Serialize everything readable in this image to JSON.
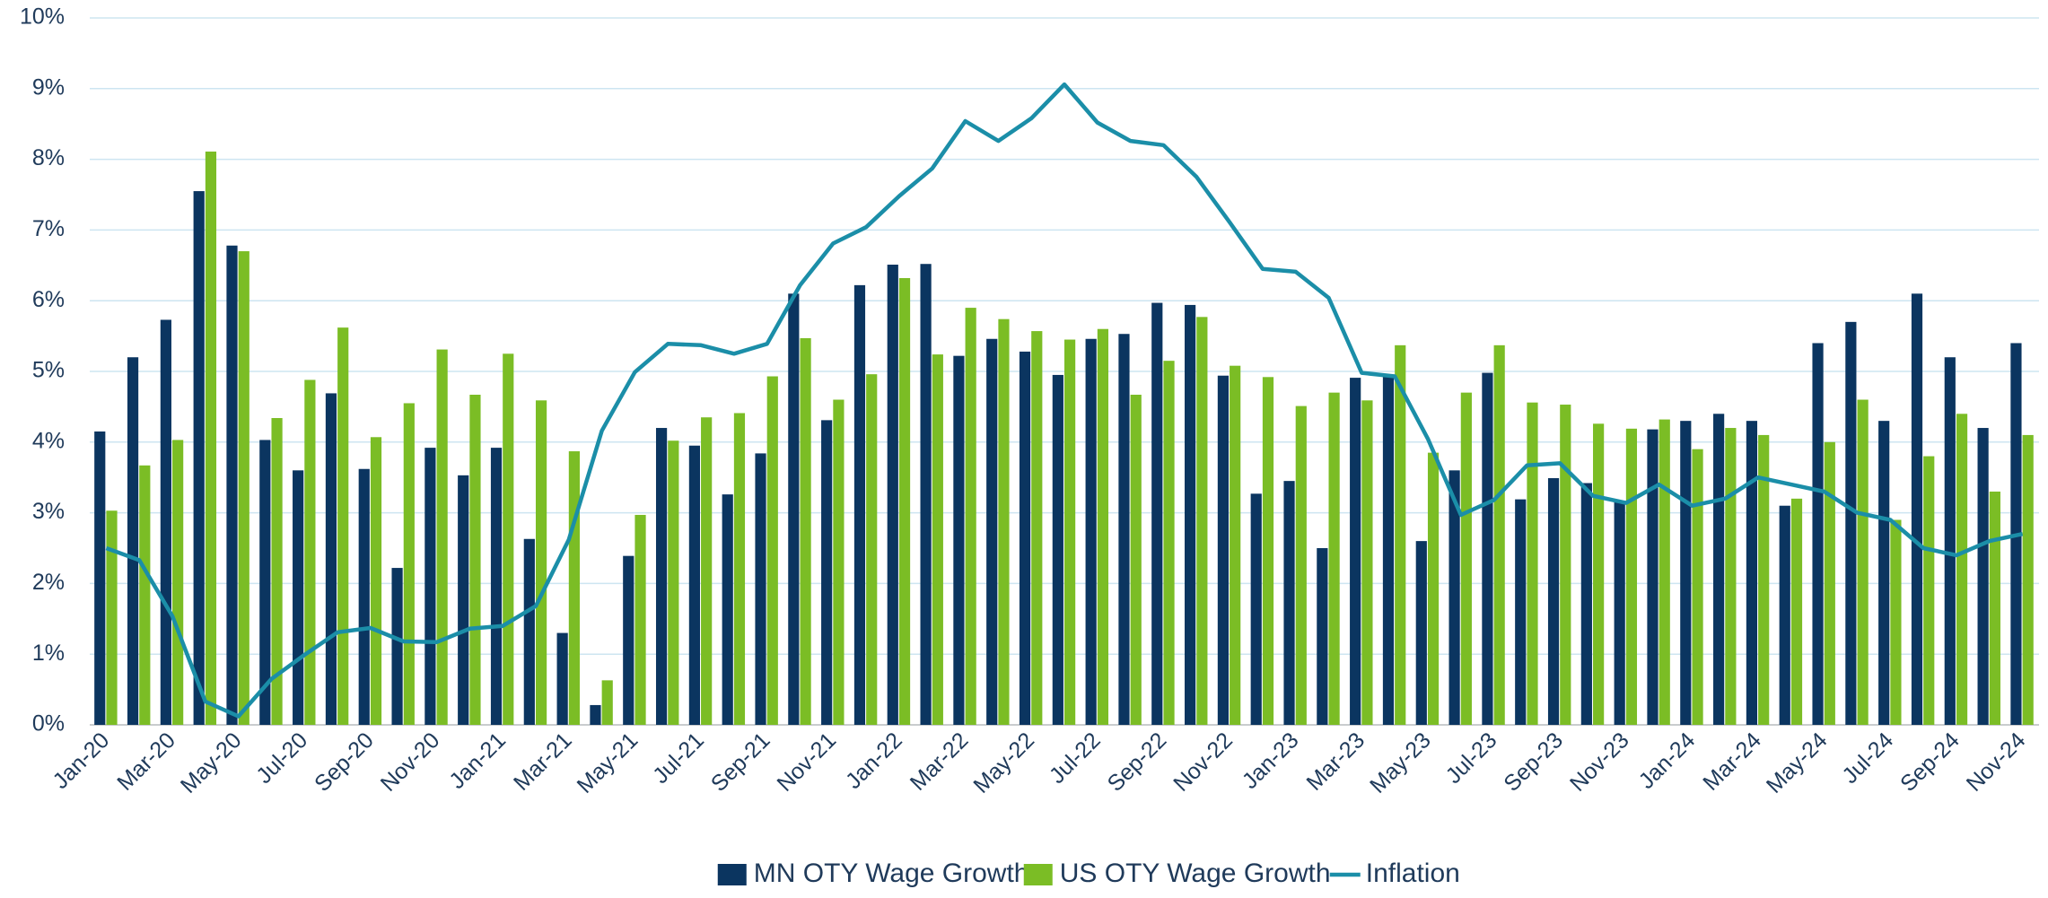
{
  "chart_data": {
    "type": "bar",
    "categories": [
      "Jan-20",
      null,
      "Mar-20",
      null,
      "May-20",
      null,
      "Jul-20",
      null,
      "Sep-20",
      null,
      "Nov-20",
      null,
      "Jan-21",
      null,
      "Mar-21",
      null,
      "May-21",
      null,
      "Jul-21",
      null,
      "Sep-21",
      null,
      "Nov-21",
      null,
      "Jan-22",
      null,
      "Mar-22",
      null,
      "May-22",
      null,
      "Jul-22",
      null,
      "Sep-22",
      null,
      "Nov-22",
      null,
      "Jan-23",
      null,
      "Mar-23",
      null,
      "May-23",
      null,
      "Jul-23",
      null,
      "Sep-23",
      null,
      "Nov-23",
      null,
      "Jan-24",
      null,
      "Mar-24",
      null,
      "May-24",
      null,
      "Jul-24",
      null,
      "Sep-24",
      null,
      "Nov-24"
    ],
    "series": [
      {
        "name": "MN OTY Wage Growth",
        "type": "bar",
        "color": "#0b3560",
        "values": [
          4.15,
          5.2,
          5.73,
          7.55,
          6.78,
          4.03,
          3.6,
          4.69,
          3.62,
          2.22,
          3.92,
          3.53,
          3.92,
          2.63,
          1.3,
          0.28,
          2.39,
          4.2,
          3.95,
          3.26,
          3.84,
          6.1,
          4.31,
          6.22,
          6.51,
          6.52,
          5.22,
          5.46,
          5.28,
          4.95,
          5.46,
          5.53,
          5.97,
          5.94,
          4.94,
          3.27,
          3.45,
          2.5,
          4.91,
          4.93,
          2.6,
          3.6,
          4.98,
          3.19,
          3.49,
          3.42,
          3.15,
          4.18,
          4.3,
          4.4,
          4.3,
          3.1,
          5.4,
          5.7,
          4.3,
          6.1,
          5.2,
          4.2,
          5.4
        ]
      },
      {
        "name": "US OTY Wage Growth",
        "type": "bar",
        "color": "#7bbd25",
        "values": [
          3.03,
          3.67,
          4.03,
          8.11,
          6.7,
          4.34,
          4.88,
          5.62,
          4.07,
          4.55,
          5.31,
          4.67,
          5.25,
          4.59,
          3.87,
          0.63,
          2.97,
          4.02,
          4.35,
          4.41,
          4.93,
          5.47,
          4.6,
          4.96,
          6.32,
          5.24,
          5.9,
          5.74,
          5.57,
          5.45,
          5.6,
          4.67,
          5.15,
          5.77,
          5.08,
          4.92,
          4.51,
          4.7,
          4.59,
          5.37,
          3.85,
          4.7,
          5.37,
          4.56,
          4.53,
          4.26,
          4.19,
          4.32,
          3.9,
          4.2,
          4.1,
          3.2,
          4.0,
          4.6,
          2.9,
          3.8,
          4.4,
          3.3,
          4.1
        ]
      },
      {
        "name": "Inflation",
        "type": "line",
        "color": "#1b8ea8",
        "values": [
          2.5,
          2.33,
          1.54,
          0.33,
          0.12,
          0.65,
          0.99,
          1.31,
          1.37,
          1.18,
          1.17,
          1.36,
          1.4,
          1.68,
          2.62,
          4.16,
          4.99,
          5.39,
          5.37,
          5.25,
          5.39,
          6.22,
          6.81,
          7.04,
          7.48,
          7.87,
          8.54,
          8.26,
          8.58,
          9.06,
          8.52,
          8.26,
          8.2,
          7.75,
          7.11,
          6.45,
          6.41,
          6.04,
          4.98,
          4.93,
          4.05,
          2.97,
          3.18,
          3.67,
          3.7,
          3.24,
          3.14,
          3.4,
          3.1,
          3.2,
          3.5,
          3.4,
          3.3,
          3.0,
          2.9,
          2.5,
          2.4,
          2.6,
          2.7
        ]
      }
    ],
    "ylim": [
      0,
      10
    ],
    "yticks": [
      {
        "value": 0,
        "label": "0%"
      },
      {
        "value": 1,
        "label": "1%"
      },
      {
        "value": 2,
        "label": "2%"
      },
      {
        "value": 3,
        "label": "3%"
      },
      {
        "value": 4,
        "label": "4%"
      },
      {
        "value": 5,
        "label": "5%"
      },
      {
        "value": 6,
        "label": "6%"
      },
      {
        "value": 7,
        "label": "7%"
      },
      {
        "value": 8,
        "label": "8%"
      },
      {
        "value": 9,
        "label": "9%"
      },
      {
        "value": 10,
        "label": "10%"
      }
    ],
    "grid": true,
    "legend": "bottom"
  }
}
